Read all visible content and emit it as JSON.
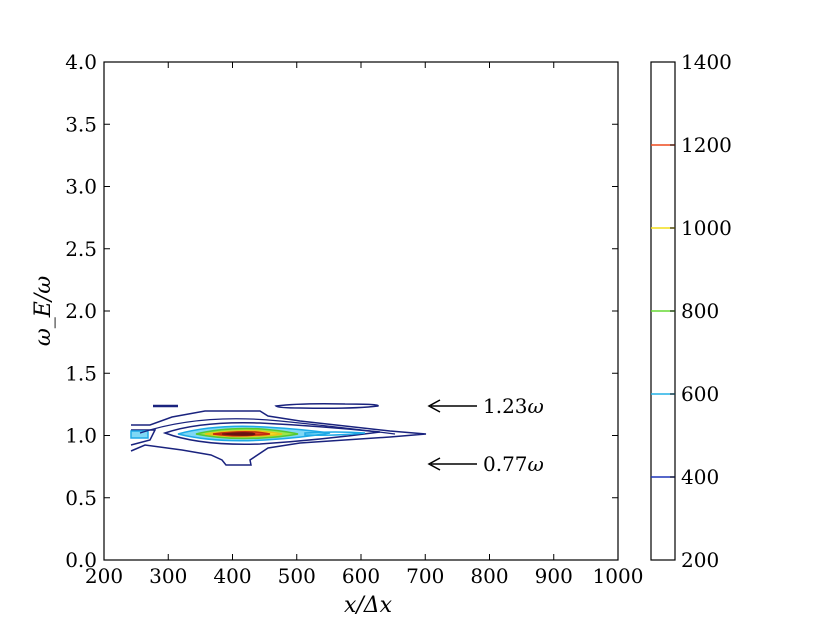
{
  "chart_data": {
    "type": "contour",
    "title": "",
    "xlabel": "x/Δx",
    "ylabel": "ω_E/ω",
    "xlim": [
      200,
      1000
    ],
    "ylim": [
      0.0,
      4.0
    ],
    "xticks": [
      "200",
      "300",
      "400",
      "500",
      "600",
      "700",
      "800",
      "900",
      "1000"
    ],
    "yticks": [
      "0.0",
      "0.5",
      "1.0",
      "1.5",
      "2.0",
      "2.5",
      "3.0",
      "3.5",
      "4.0"
    ],
    "colorbar": {
      "range": [
        200,
        1400
      ],
      "ticks": [
        "200",
        "400",
        "600",
        "800",
        "1000",
        "1200",
        "1400"
      ],
      "levels": [
        {
          "value": 400,
          "color": "#1f35b8"
        },
        {
          "value": 600,
          "color": "#22b0e6"
        },
        {
          "value": 800,
          "color": "#66d933"
        },
        {
          "value": 1000,
          "color": "#f2de1a"
        },
        {
          "value": 1200,
          "color": "#ee4a1f"
        }
      ]
    },
    "annotations": [
      {
        "text": "1.23",
        "unit": "ω",
        "x": 700,
        "y": 1.23
      },
      {
        "text": "0.77",
        "unit": "ω",
        "x": 700,
        "y": 0.77
      }
    ],
    "contour_peak": {
      "x": 395,
      "y": 1.0
    }
  }
}
